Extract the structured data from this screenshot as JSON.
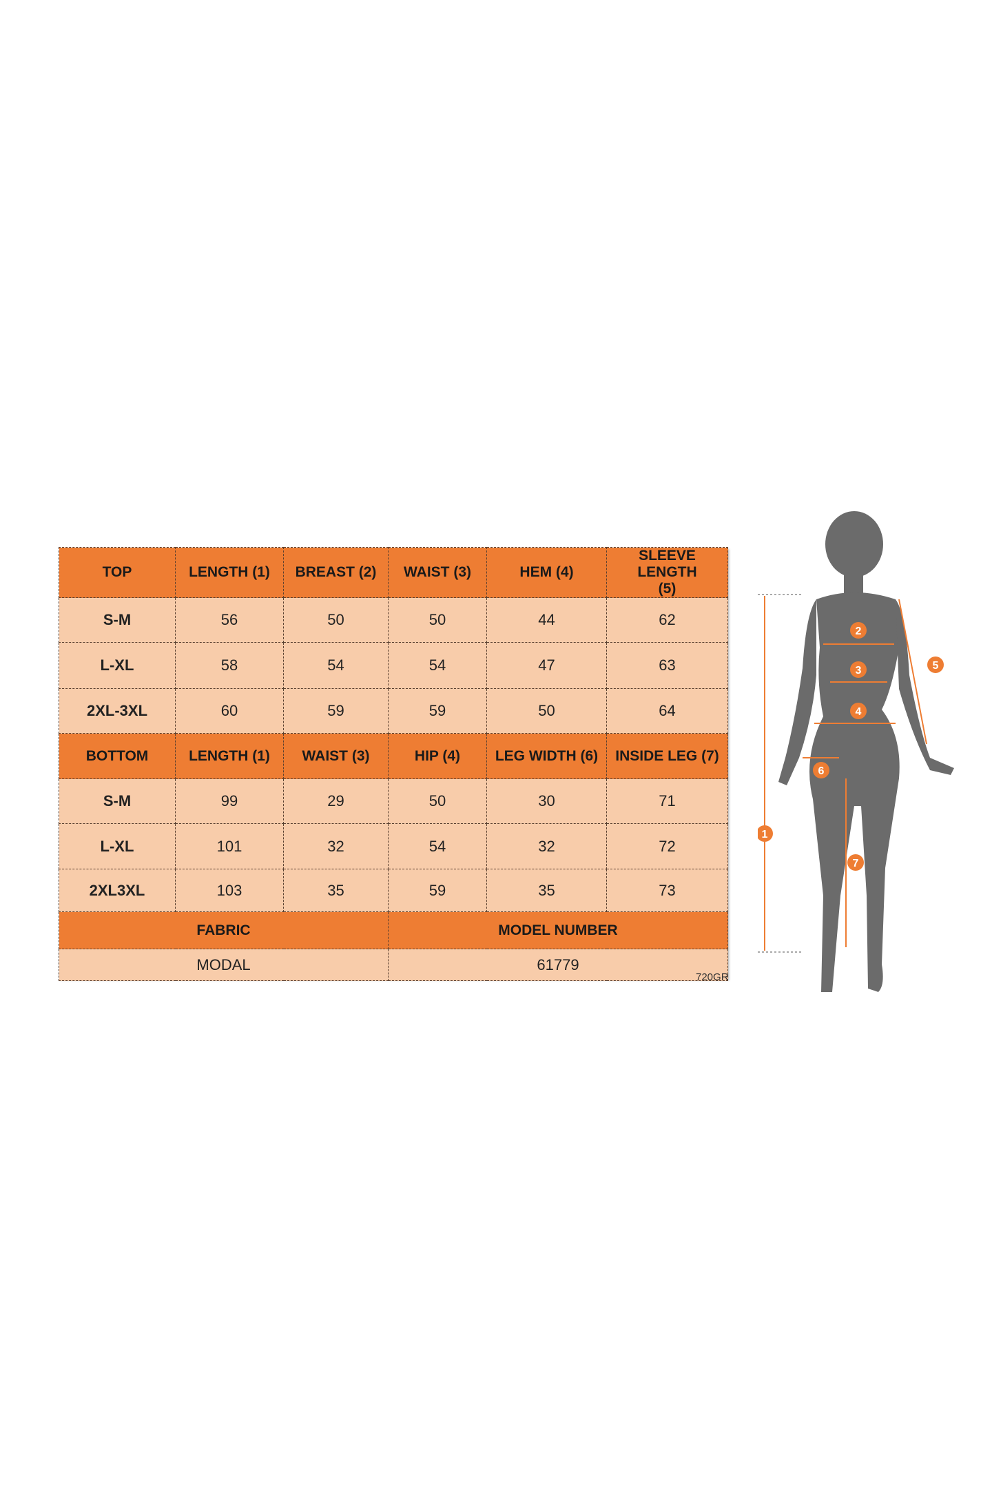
{
  "top": {
    "headers": [
      "TOP",
      "LENGTH (1)",
      "BREAST (2)",
      "WAIST (3)",
      "HEM (4)",
      "SLEEVE LENGTH (5)"
    ],
    "rows": [
      [
        "S-M",
        "56",
        "50",
        "50",
        "44",
        "62"
      ],
      [
        "L-XL",
        "58",
        "54",
        "54",
        "47",
        "63"
      ],
      [
        "2XL-3XL",
        "60",
        "59",
        "59",
        "50",
        "64"
      ]
    ]
  },
  "bottom": {
    "headers": [
      "BOTTOM",
      "LENGTH (1)",
      "WAIST (3)",
      "HIP (4)",
      "LEG WIDTH (6)",
      "INSIDE LEG (7)"
    ],
    "rows": [
      [
        "S-M",
        "99",
        "29",
        "50",
        "30",
        "71"
      ],
      [
        "L-XL",
        "101",
        "32",
        "54",
        "32",
        "72"
      ],
      [
        "2XL3XL",
        "103",
        "35",
        "59",
        "35",
        "73"
      ]
    ]
  },
  "footer": {
    "fabric_label": "FABRIC",
    "model_label": "MODEL NUMBER",
    "fabric": "MODAL",
    "model": "61779"
  },
  "code": "720GR",
  "figure": {
    "markers": [
      "1",
      "2",
      "3",
      "4",
      "5",
      "6",
      "7"
    ]
  },
  "colors": {
    "header": "#ee7d33",
    "cell": "#f8ccaa",
    "silhouette": "#6b6b6b",
    "marker": "#ee7d33"
  }
}
